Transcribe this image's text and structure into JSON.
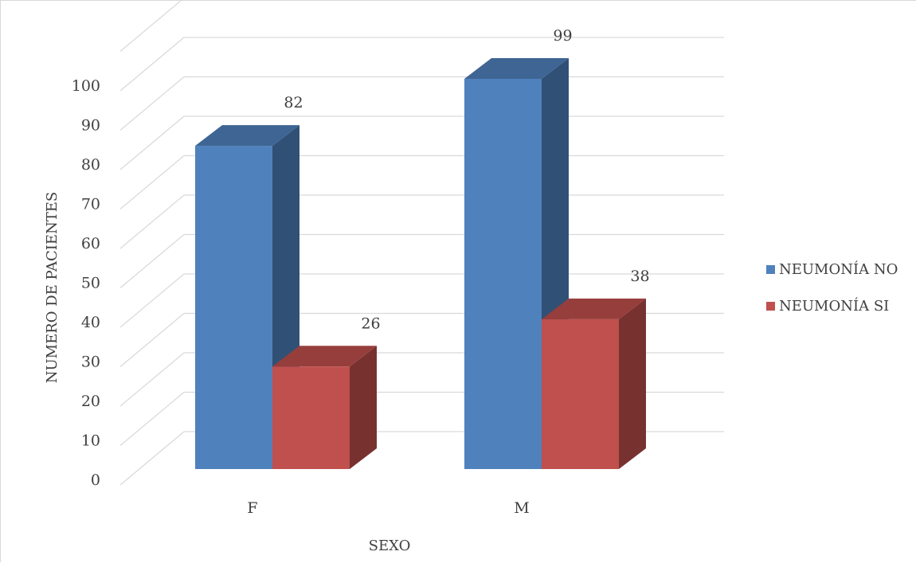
{
  "chart_data": {
    "type": "bar",
    "subtype": "3d-clustered-column",
    "categories": [
      "F",
      "M"
    ],
    "series": [
      {
        "name": "NEUMONÍA NO",
        "values": [
          82,
          99
        ],
        "color": "#4f81bd"
      },
      {
        "name": "NEUMONÍA SI",
        "values": [
          26,
          38
        ],
        "color": "#c0504d"
      }
    ],
    "xlabel": "SEXO",
    "ylabel": "NUMERO DE PACIENTES",
    "ylim": [
      0,
      100
    ],
    "yticks": [
      0,
      10,
      20,
      30,
      40,
      50,
      60,
      70,
      80,
      90,
      100
    ],
    "grid": true,
    "legend": "right",
    "data_labels": true
  }
}
